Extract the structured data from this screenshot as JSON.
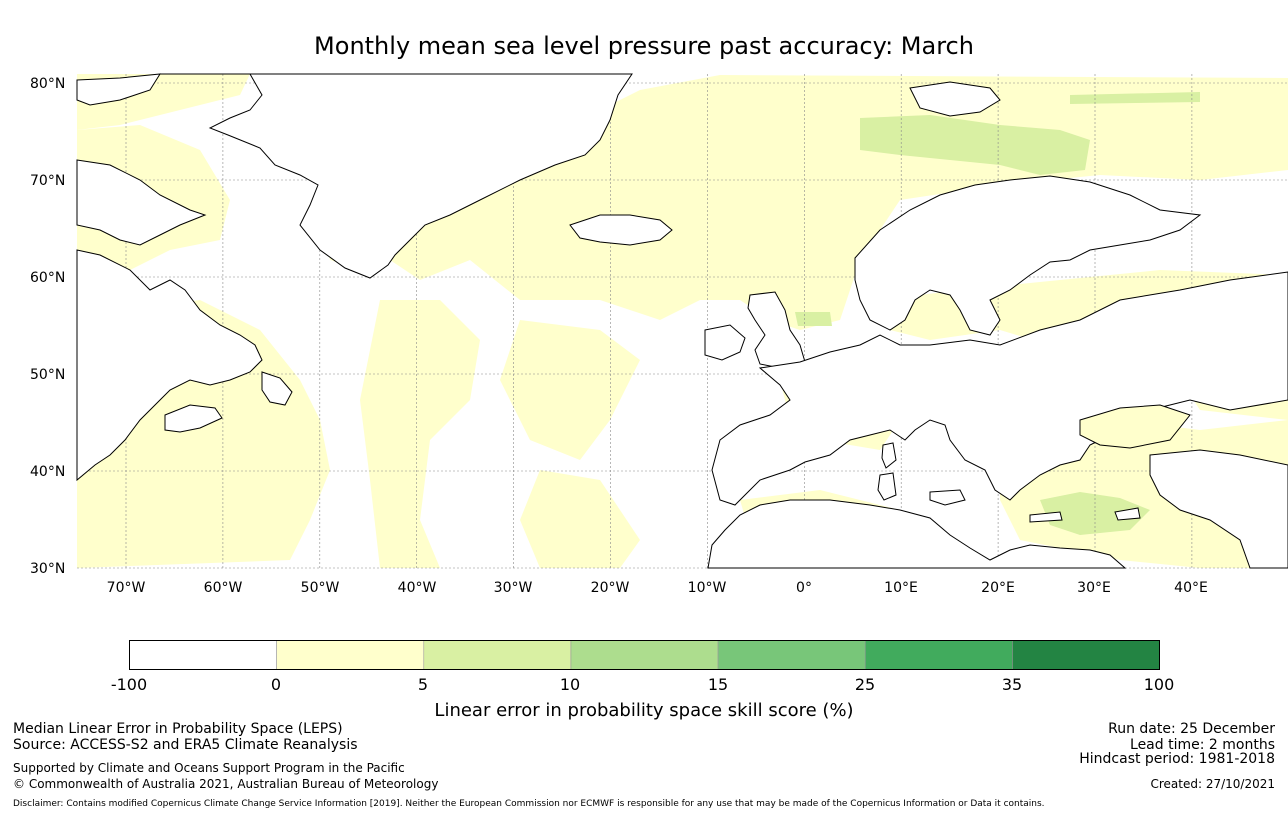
{
  "title": "Monthly mean sea level pressure past accuracy: March",
  "map": {
    "lat_labels": [
      "80°N",
      "70°N",
      "60°N",
      "50°N",
      "40°N",
      "30°N"
    ],
    "lat_values": [
      80,
      70,
      60,
      50,
      40,
      30
    ],
    "lon_labels": [
      "70°W",
      "60°W",
      "50°W",
      "40°W",
      "30°W",
      "20°W",
      "10°W",
      "0°",
      "10°E",
      "20°E",
      "30°E",
      "40°E"
    ],
    "lon_values": [
      -70,
      -60,
      -50,
      -40,
      -30,
      -20,
      -10,
      0,
      10,
      20,
      30,
      40
    ],
    "extent": {
      "lon_min": -75,
      "lon_max": 50,
      "lat_min": 30,
      "lat_max": 81
    },
    "colors": {
      "land_outline": "#000000",
      "grid": "#888888"
    }
  },
  "colorbar": {
    "ticks": [
      "-100",
      "0",
      "5",
      "10",
      "15",
      "25",
      "35",
      "100"
    ],
    "colors": [
      "#ffffff",
      "#ffffcc",
      "#d9f0a3",
      "#addd8e",
      "#78c679",
      "#41ab5d",
      "#238443"
    ],
    "label": "Linear error in probability space skill score (%)"
  },
  "footer": {
    "line1": "Median Linear Error in Probability Space (LEPS)",
    "line2": "Source: ACCESS-S2 and ERA5 Climate Reanalysis",
    "line3": "Supported by Climate and Oceans Support Program in the Pacific",
    "line4": "© Commonwealth of Australia 2021, Australian Bureau of Meteorology",
    "run_date": "Run date: 25 December",
    "lead_time": "Lead time: 2 months",
    "hindcast": "Hindcast period: 1981-2018",
    "created": "Created: 27/10/2021",
    "disclaimer": "Disclaimer: Contains modified Copernicus Climate Change Service Information [2019]. Neither the European Commission nor ECMWF is responsible for any use that may be made of the Copernicus Information or Data it contains."
  }
}
